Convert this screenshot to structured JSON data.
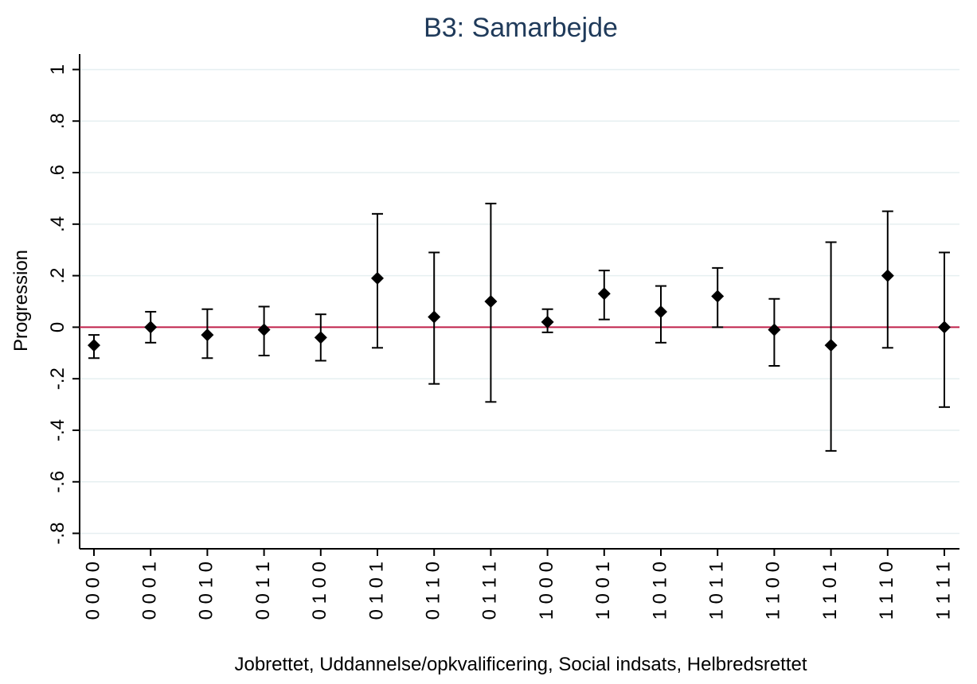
{
  "chart_data": {
    "type": "errorbar",
    "title": "B3: Samarbejde",
    "xlabel": "Jobrettet, Uddannelse/opkvalificering, Social indsats, Helbredsrettet",
    "ylabel": "Progression",
    "categories": [
      "0 0 0 0",
      "0 0 0 1",
      "0 0 1 0",
      "0 0 1 1",
      "0 1 0 0",
      "0 1 0 1",
      "0 1 1 0",
      "0 1 1 1",
      "1 0 0 0",
      "1 0 0 1",
      "1 0 1 0",
      "1 0 1 1",
      "1 1 0 0",
      "1 1 0 1",
      "1 1 1 0",
      "1 1 1 1"
    ],
    "values": [
      -0.07,
      0.0,
      -0.03,
      -0.01,
      -0.04,
      0.19,
      0.04,
      0.1,
      0.02,
      0.13,
      0.06,
      0.12,
      -0.01,
      -0.07,
      0.2,
      0.0
    ],
    "lower": [
      -0.12,
      -0.06,
      -0.12,
      -0.11,
      -0.13,
      -0.08,
      -0.22,
      -0.29,
      -0.02,
      0.03,
      -0.06,
      0.0,
      -0.15,
      -0.48,
      -0.08,
      -0.31
    ],
    "upper": [
      -0.03,
      0.06,
      0.07,
      0.08,
      0.05,
      0.44,
      0.29,
      0.48,
      0.07,
      0.22,
      0.16,
      0.23,
      0.11,
      0.33,
      0.45,
      0.29
    ],
    "color": "#000000",
    "reference_line": 0,
    "reference_color": "#c0204a",
    "ylim": [
      -0.86,
      1.06
    ],
    "yticks": [
      {
        "value": -0.8,
        "label": "-.8"
      },
      {
        "value": -0.6,
        "label": "-.6"
      },
      {
        "value": -0.4,
        "label": "-.4"
      },
      {
        "value": -0.2,
        "label": "-.2"
      },
      0,
      {
        "value": 0.2,
        "label": ".2"
      },
      {
        "value": 0.4,
        "label": ".4"
      },
      {
        "value": 0.6,
        "label": ".6"
      },
      {
        "value": 0.8,
        "label": ".8"
      },
      1
    ],
    "grid": true
  }
}
